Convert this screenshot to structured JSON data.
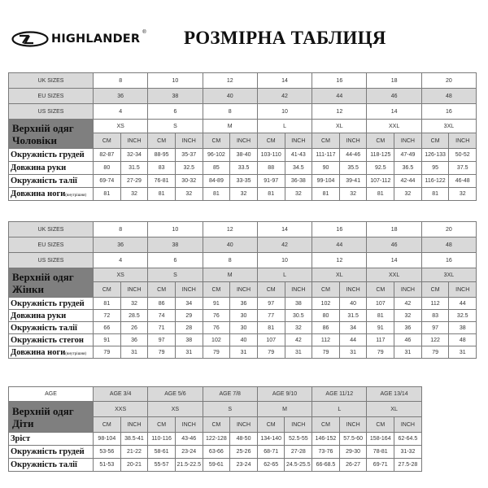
{
  "header": {
    "brand": "HIGHLANDER",
    "brand_mark": "®",
    "title": "РОЗМІРНА ТАБЛИЦЯ"
  },
  "men": {
    "label_line1": "Верхній одяг",
    "label_line2": "Чоловіки",
    "uk_label": "UK SIZES",
    "eu_label": "EU SIZES",
    "us_label": "US SIZES",
    "uk": [
      "8",
      "10",
      "12",
      "14",
      "16",
      "18",
      "20"
    ],
    "eu": [
      "36",
      "38",
      "40",
      "42",
      "44",
      "46",
      "48"
    ],
    "us": [
      "4",
      "6",
      "8",
      "10",
      "12",
      "14",
      "16"
    ],
    "sizes": [
      "XS",
      "S",
      "M",
      "L",
      "XL",
      "XXL",
      "3XL"
    ],
    "cm": "CM",
    "inch": "INCH",
    "rows": [
      {
        "label": "Окружність грудей",
        "note": "",
        "values": [
          "82-87",
          "32-34",
          "88-95",
          "35-37",
          "96-102",
          "38-40",
          "103-110",
          "41-43",
          "111-117",
          "44-46",
          "118-125",
          "47-49",
          "126-133",
          "50-52"
        ]
      },
      {
        "label": "Довжина руки",
        "note": "",
        "values": [
          "80",
          "31.5",
          "83",
          "32.5",
          "85",
          "33.5",
          "88",
          "34.5",
          "90",
          "35.5",
          "92.5",
          "36.5",
          "95",
          "37.5"
        ]
      },
      {
        "label": "Окружність талії",
        "note": "",
        "values": [
          "69-74",
          "27-29",
          "76-81",
          "30-32",
          "84-89",
          "33-35",
          "91-97",
          "36-38",
          "99-104",
          "39-41",
          "107-112",
          "42-44",
          "116-122",
          "46-48"
        ]
      },
      {
        "label": "Довжина ноги",
        "note": "(внутрішня)",
        "values": [
          "81",
          "32",
          "81",
          "32",
          "81",
          "32",
          "81",
          "32",
          "81",
          "32",
          "81",
          "32",
          "81",
          "32"
        ]
      }
    ]
  },
  "women": {
    "label_line1": "Верхній одяг",
    "label_line2": "Жінки",
    "uk_label": "UK SIZES",
    "eu_label": "EU SIZES",
    "us_label": "US SIZES",
    "uk": [
      "8",
      "10",
      "12",
      "14",
      "16",
      "18",
      "20"
    ],
    "eu": [
      "36",
      "38",
      "40",
      "42",
      "44",
      "46",
      "48"
    ],
    "us": [
      "4",
      "6",
      "8",
      "10",
      "12",
      "14",
      "16"
    ],
    "sizes": [
      "XS",
      "S",
      "M",
      "L",
      "XL",
      "XXL",
      "3XL"
    ],
    "cm": "CM",
    "inch": "INCH",
    "rows": [
      {
        "label": "Окружність грудей",
        "note": "",
        "values": [
          "81",
          "32",
          "86",
          "34",
          "91",
          "36",
          "97",
          "38",
          "102",
          "40",
          "107",
          "42",
          "112",
          "44"
        ]
      },
      {
        "label": "Довжина руки",
        "note": "",
        "values": [
          "72",
          "28.5",
          "74",
          "29",
          "76",
          "30",
          "77",
          "30.5",
          "80",
          "31.5",
          "81",
          "32",
          "83",
          "32.5"
        ]
      },
      {
        "label": "Окружність талії",
        "note": "",
        "values": [
          "66",
          "26",
          "71",
          "28",
          "76",
          "30",
          "81",
          "32",
          "86",
          "34",
          "91",
          "36",
          "97",
          "38"
        ]
      },
      {
        "label": "Окружність стегон",
        "note": "",
        "values": [
          "91",
          "36",
          "97",
          "38",
          "102",
          "40",
          "107",
          "42",
          "112",
          "44",
          "117",
          "46",
          "122",
          "48"
        ]
      },
      {
        "label": "Довжина ноги",
        "note": "(внутрішня)",
        "values": [
          "79",
          "31",
          "79",
          "31",
          "79",
          "31",
          "79",
          "31",
          "79",
          "31",
          "79",
          "31",
          "79",
          "31"
        ]
      }
    ]
  },
  "kids": {
    "label_line1": "Верхній одяг",
    "label_line2": "Діти",
    "age_label": "AGE",
    "ages": [
      "AGE 3/4",
      "AGE 5/6",
      "AGE 7/8",
      "AGE 9/10",
      "AGE 11/12",
      "AGE 13/14"
    ],
    "sizes": [
      "XXS",
      "XS",
      "S",
      "M",
      "L",
      "XL"
    ],
    "cm": "CM",
    "inch": "INCH",
    "rows": [
      {
        "label": "Зріст",
        "note": "",
        "values": [
          "98-104",
          "38.5-41",
          "110-116",
          "43-46",
          "122-128",
          "48-50",
          "134-140",
          "52.5-55",
          "146-152",
          "57.5-60",
          "158-164",
          "62-64.5"
        ]
      },
      {
        "label": "Окружність грудей",
        "note": "",
        "values": [
          "53-56",
          "21-22",
          "58-61",
          "23-24",
          "63-66",
          "25-26",
          "68-71",
          "27-28",
          "73-76",
          "29-30",
          "78-81",
          "31-32"
        ]
      },
      {
        "label": "Окружність талії",
        "note": "",
        "values": [
          "51-53",
          "20-21",
          "55-57",
          "21.5-22.5",
          "59-61",
          "23-24",
          "62-65",
          "24.5-25.5",
          "66-68.5",
          "26-27",
          "69-71",
          "27.5-28"
        ]
      }
    ]
  }
}
